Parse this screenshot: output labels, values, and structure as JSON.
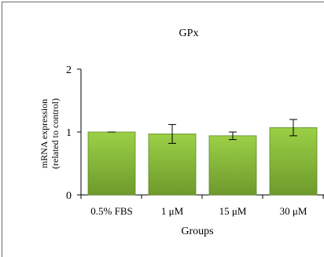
{
  "chart_data": {
    "type": "bar",
    "title": "GPx",
    "xlabel": "Groups",
    "ylabel": "mRNA expression",
    "ylabel_line2": "(related to control)",
    "categories": [
      "0.5% FBS",
      "1 μM",
      "15 μM",
      "30 μM"
    ],
    "values": [
      1.0,
      0.97,
      0.94,
      1.07
    ],
    "errors": [
      0.0,
      0.15,
      0.06,
      0.13
    ],
    "ylim": [
      0,
      2
    ],
    "yticks": [
      "0",
      "1",
      "2"
    ],
    "ytick_values": [
      0,
      1,
      2
    ],
    "grid": false,
    "legend": "none",
    "colors": {
      "bar_top": "#9bd046",
      "bar_bottom": "#6e9a2c",
      "bar_stroke": "#5f8a25",
      "axis": "#000000",
      "frame": "#6b6b6b"
    }
  }
}
